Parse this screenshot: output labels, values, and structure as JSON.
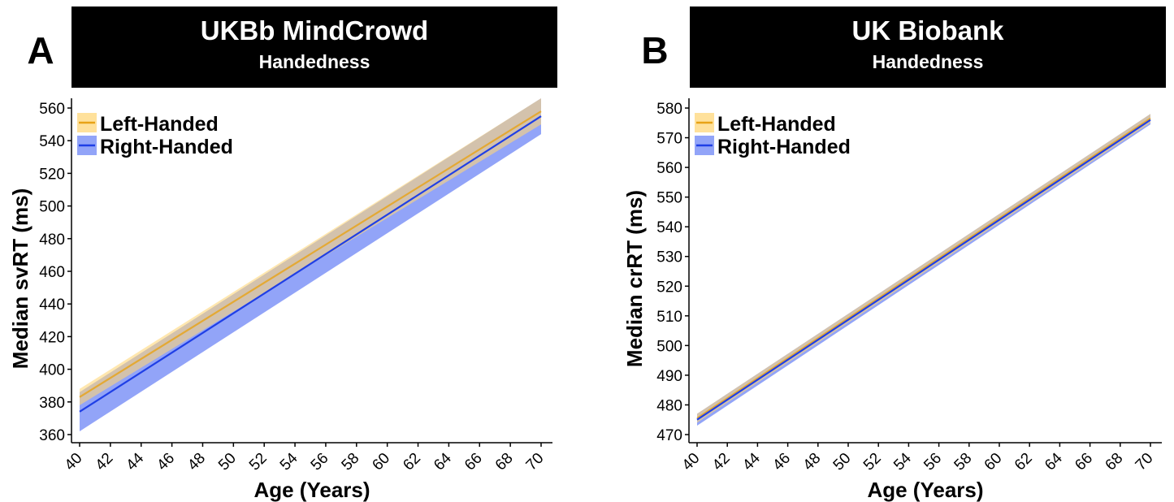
{
  "chart_data": [
    {
      "type": "line",
      "panel_label": "A",
      "title": "UKBb MindCrowd",
      "subtitle": "Handedness",
      "xlabel": "Age (Years)",
      "ylabel": "Median svRT (ms)",
      "xlim": [
        40,
        70
      ],
      "ylim": [
        360,
        560
      ],
      "xticks": [
        40,
        42,
        44,
        46,
        48,
        50,
        52,
        54,
        56,
        58,
        60,
        62,
        64,
        66,
        68,
        70
      ],
      "yticks": [
        360,
        380,
        400,
        420,
        440,
        460,
        480,
        500,
        520,
        540,
        560
      ],
      "grid": false,
      "legend_position": "top-left",
      "series": [
        {
          "name": "Left-Handed",
          "color": "#E8A317",
          "band_color": "#FFD77A",
          "x": [
            40,
            70
          ],
          "y": [
            383,
            558
          ],
          "ci_low": [
            378,
            550
          ],
          "ci_high": [
            388,
            566
          ]
        },
        {
          "name": "Right-Handed",
          "color": "#1F3FE6",
          "band_color": "#6E86F5",
          "x": [
            40,
            70
          ],
          "y": [
            374,
            555
          ],
          "ci_low": [
            362,
            544
          ],
          "ci_high": [
            386,
            566
          ]
        }
      ]
    },
    {
      "type": "line",
      "panel_label": "B",
      "title": "UK Biobank",
      "subtitle": "Handedness",
      "xlabel": "Age (Years)",
      "ylabel": "Median crRT (ms)",
      "xlim": [
        40,
        70
      ],
      "ylim": [
        470,
        580
      ],
      "xticks": [
        40,
        42,
        44,
        46,
        48,
        50,
        52,
        54,
        56,
        58,
        60,
        62,
        64,
        66,
        68,
        70
      ],
      "yticks": [
        470,
        480,
        490,
        500,
        510,
        520,
        530,
        540,
        550,
        560,
        570,
        580
      ],
      "grid": false,
      "legend_position": "top-left",
      "series": [
        {
          "name": "Left-Handed",
          "color": "#E8A317",
          "band_color": "#FFD77A",
          "x": [
            40,
            70
          ],
          "y": [
            475.5,
            576.5
          ],
          "ci_low": [
            474,
            575
          ],
          "ci_high": [
            477,
            578
          ]
        },
        {
          "name": "Right-Handed",
          "color": "#1F3FE6",
          "band_color": "#6E86F5",
          "x": [
            40,
            70
          ],
          "y": [
            475,
            576
          ],
          "ci_low": [
            473,
            574.5
          ],
          "ci_high": [
            477,
            578
          ]
        }
      ]
    }
  ]
}
